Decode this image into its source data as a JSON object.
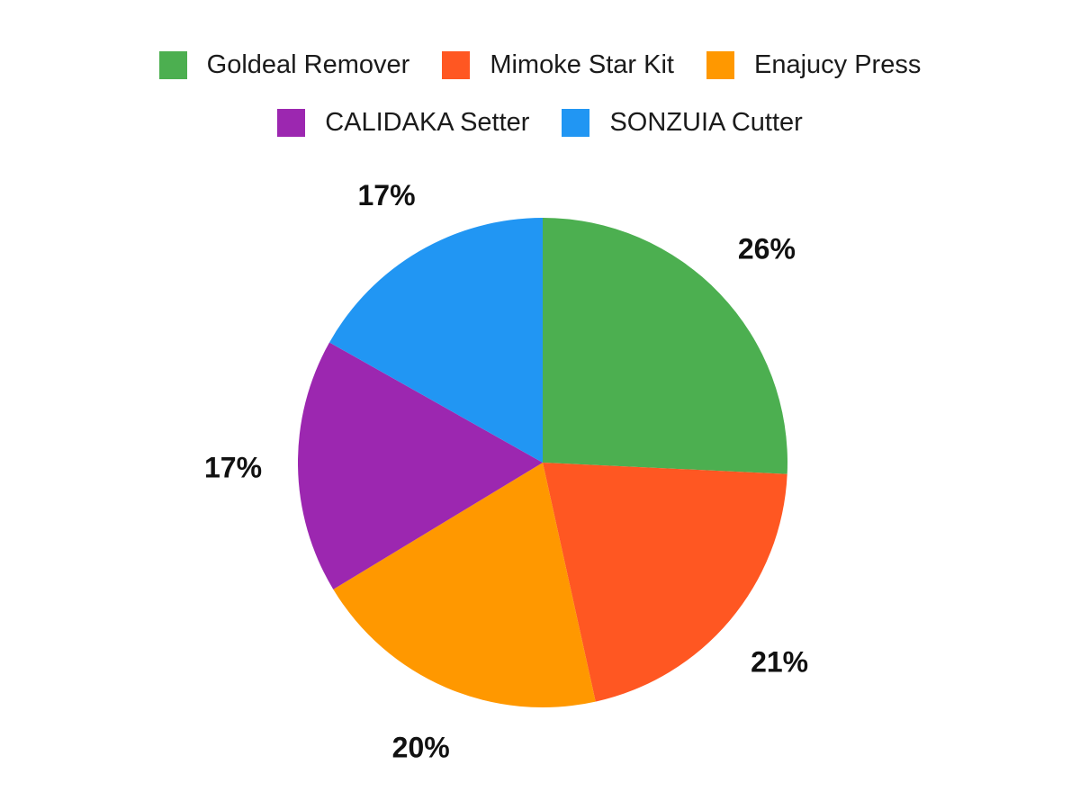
{
  "chart_data": {
    "type": "pie",
    "title": "",
    "categories": [
      "Goldeal Remover",
      "Mimoke Star Kit",
      "Enajucy Press",
      "CALIDAKA Setter",
      "SONZUIA Cutter"
    ],
    "values": [
      26,
      21,
      20,
      17,
      17
    ],
    "display_labels": [
      "26%",
      "21%",
      "20%",
      "17%",
      "17%"
    ],
    "colors": [
      "#4CAF50",
      "#FF5722",
      "#FF9800",
      "#9C27B0",
      "#2196F3"
    ],
    "slugs": [
      "goldeal-remover",
      "mimoke-star-kit",
      "enajucy-press",
      "calidaka-setter",
      "sonzuia-cutter"
    ],
    "label_suffix": "%",
    "start_angle_deg": 0,
    "direction": "clockwise",
    "legend_position": "top",
    "legend_row_break": 3,
    "background_color": "#ffffff",
    "label_text_color": "#111111",
    "legend_text_color": "#1b1b1b"
  }
}
